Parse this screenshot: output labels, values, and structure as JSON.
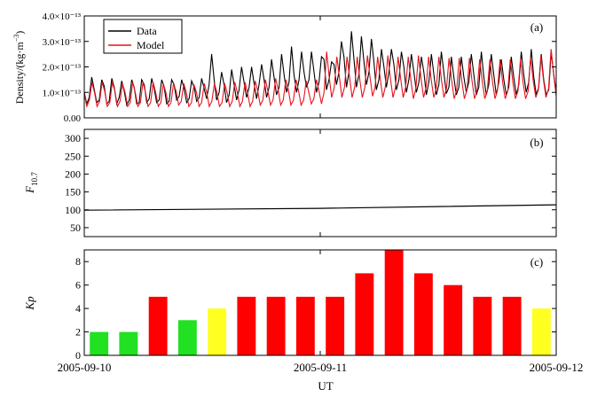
{
  "figure": {
    "xlabel": "UT",
    "x_ticks": [
      "2005-09-10",
      "2005-09-11",
      "2005-09-12"
    ]
  },
  "chart_data": [
    {
      "id": "a",
      "type": "line",
      "panel_label": "(a)",
      "ylabel": "Density/(kg·m⁻³)",
      "ylim": [
        0.0,
        4e-13
      ],
      "y_ticks": [
        "0.00",
        "1.0×10⁻¹³",
        "2.0×10⁻¹³",
        "3.0×10⁻¹³",
        "4.0×10⁻¹³"
      ],
      "xlim_days": [
        0,
        2
      ],
      "legend": {
        "position": "top-left"
      },
      "series": [
        {
          "name": "Data",
          "color": "#000000",
          "samples_per_day": 48,
          "values_e13": [
            1.0,
            0.55,
            0.8,
            1.6,
            1.1,
            0.6,
            0.7,
            1.5,
            1.25,
            0.55,
            0.65,
            1.55,
            1.2,
            0.55,
            0.8,
            1.45,
            1.05,
            0.5,
            0.7,
            1.5,
            1.2,
            0.55,
            0.6,
            1.5,
            1.3,
            0.6,
            0.75,
            1.55,
            1.15,
            0.6,
            0.7,
            1.5,
            1.2,
            0.55,
            0.65,
            1.5,
            1.3,
            0.7,
            0.85,
            1.5,
            1.15,
            0.6,
            0.75,
            1.45,
            1.2,
            0.65,
            0.8,
            1.55,
            1.15,
            0.75,
            1.3,
            2.5,
            1.5,
            0.7,
            1.0,
            1.8,
            1.3,
            0.6,
            0.9,
            1.9,
            1.3,
            0.7,
            1.1,
            2.0,
            1.4,
            0.8,
            1.2,
            2.0,
            1.35,
            0.75,
            1.3,
            2.1,
            1.5,
            0.8,
            1.2,
            2.3,
            1.6,
            0.9,
            1.2,
            2.5,
            1.7,
            1.0,
            1.4,
            2.8,
            1.7,
            1.0,
            1.5,
            2.6,
            1.8,
            1.2,
            1.5,
            2.6,
            1.8,
            1.0,
            1.4,
            2.4,
            2.3,
            1.1,
            1.5,
            2.2,
            2.1,
            1.3,
            1.8,
            3.0,
            2.4,
            1.2,
            1.8,
            3.4,
            2.3,
            1.2,
            1.7,
            3.2,
            2.2,
            1.3,
            1.8,
            3.1,
            2.2,
            1.1,
            1.5,
            2.7,
            2.0,
            1.2,
            1.8,
            2.7,
            2.1,
            1.1,
            1.5,
            2.6,
            2.0,
            1.0,
            1.5,
            2.5,
            1.8,
            1.0,
            1.4,
            2.4,
            1.8,
            0.9,
            1.4,
            2.5,
            1.7,
            0.9,
            1.3,
            2.6,
            1.8,
            0.95,
            1.2,
            2.4,
            1.6,
            0.9,
            1.2,
            2.4,
            1.6,
            1.0,
            1.4,
            2.5,
            1.7,
            0.9,
            1.2,
            2.6,
            1.6,
            0.9,
            1.3,
            2.5,
            1.7,
            0.9,
            1.4,
            2.3,
            1.5,
            0.9,
            1.2,
            2.4,
            1.6,
            0.9,
            1.3,
            2.6,
            1.7,
            1.0,
            1.4,
            2.7,
            1.6,
            0.9,
            1.2,
            2.5,
            1.5,
            0.9,
            1.1,
            2.6,
            1.7,
            1.0
          ]
        },
        {
          "name": "Model",
          "color": "#e8141e",
          "samples_per_day": 48,
          "values_e13": [
            0.95,
            0.45,
            0.7,
            1.4,
            1.0,
            0.45,
            0.65,
            1.4,
            1.05,
            0.45,
            0.6,
            1.4,
            1.05,
            0.45,
            0.65,
            1.35,
            1.0,
            0.45,
            0.6,
            1.4,
            1.0,
            0.45,
            0.6,
            1.4,
            1.0,
            0.45,
            0.6,
            1.4,
            1.0,
            0.45,
            0.6,
            1.35,
            1.0,
            0.45,
            0.6,
            1.35,
            1.05,
            0.5,
            0.65,
            1.35,
            1.0,
            0.45,
            0.6,
            1.3,
            1.0,
            0.45,
            0.6,
            1.35,
            1.0,
            0.45,
            0.65,
            1.35,
            1.0,
            0.45,
            0.6,
            1.35,
            1.0,
            0.45,
            0.65,
            1.4,
            1.0,
            0.45,
            0.65,
            1.4,
            1.0,
            0.45,
            0.65,
            1.45,
            1.05,
            0.5,
            0.7,
            1.5,
            1.05,
            0.5,
            0.7,
            1.55,
            1.1,
            0.5,
            0.7,
            1.5,
            1.1,
            0.5,
            0.7,
            1.5,
            1.05,
            0.5,
            0.7,
            1.45,
            1.0,
            0.55,
            0.75,
            1.5,
            1.05,
            0.55,
            1.0,
            2.6,
            1.6,
            0.8,
            1.2,
            2.4,
            1.6,
            0.8,
            1.2,
            2.4,
            1.6,
            0.8,
            1.2,
            2.4,
            1.5,
            0.8,
            1.2,
            2.45,
            1.6,
            0.85,
            1.2,
            2.4,
            1.55,
            0.8,
            1.2,
            2.45,
            1.55,
            0.8,
            1.2,
            2.4,
            1.55,
            0.8,
            1.2,
            2.4,
            1.5,
            0.75,
            1.15,
            2.45,
            1.55,
            0.8,
            1.2,
            2.4,
            1.5,
            0.8,
            1.15,
            2.4,
            1.5,
            0.8,
            1.15,
            2.35,
            1.5,
            0.75,
            1.1,
            2.35,
            1.45,
            0.75,
            1.1,
            2.35,
            1.45,
            0.75,
            1.1,
            2.3,
            1.45,
            0.75,
            1.1,
            2.3,
            1.45,
            0.75,
            1.1,
            2.3,
            1.4,
            0.75,
            1.05,
            2.3,
            1.4,
            0.75,
            1.05,
            2.3,
            1.4,
            0.75,
            1.05,
            2.35,
            1.45,
            0.8,
            1.1,
            2.45,
            1.5,
            0.8,
            1.15,
            2.7,
            1.7,
            0.85
          ]
        }
      ]
    },
    {
      "id": "b",
      "type": "line",
      "panel_label": "(b)",
      "ylabel": "F10.7",
      "ylim": [
        25,
        325
      ],
      "y_ticks": [
        50,
        100,
        150,
        200,
        250,
        300
      ],
      "xlim_days": [
        0,
        2
      ],
      "series": [
        {
          "name": "",
          "color": "#000000",
          "x_days": [
            0,
            1,
            2
          ],
          "values": [
            99,
            104,
            114
          ]
        }
      ]
    },
    {
      "id": "c",
      "type": "bar",
      "panel_label": "(c)",
      "ylabel": "Kp",
      "ylim": [
        0,
        9
      ],
      "y_ticks": [
        0,
        2,
        4,
        6,
        8
      ],
      "xlim_days": [
        0,
        2
      ],
      "bar_interval_hours": 3,
      "values": [
        2,
        2,
        5,
        3,
        4,
        5,
        5,
        5,
        5,
        7,
        9,
        7,
        6,
        5,
        5,
        4
      ],
      "colors": {
        "low": "#22e022",
        "mid": "#ffff22",
        "high": "#ff0000"
      }
    }
  ]
}
